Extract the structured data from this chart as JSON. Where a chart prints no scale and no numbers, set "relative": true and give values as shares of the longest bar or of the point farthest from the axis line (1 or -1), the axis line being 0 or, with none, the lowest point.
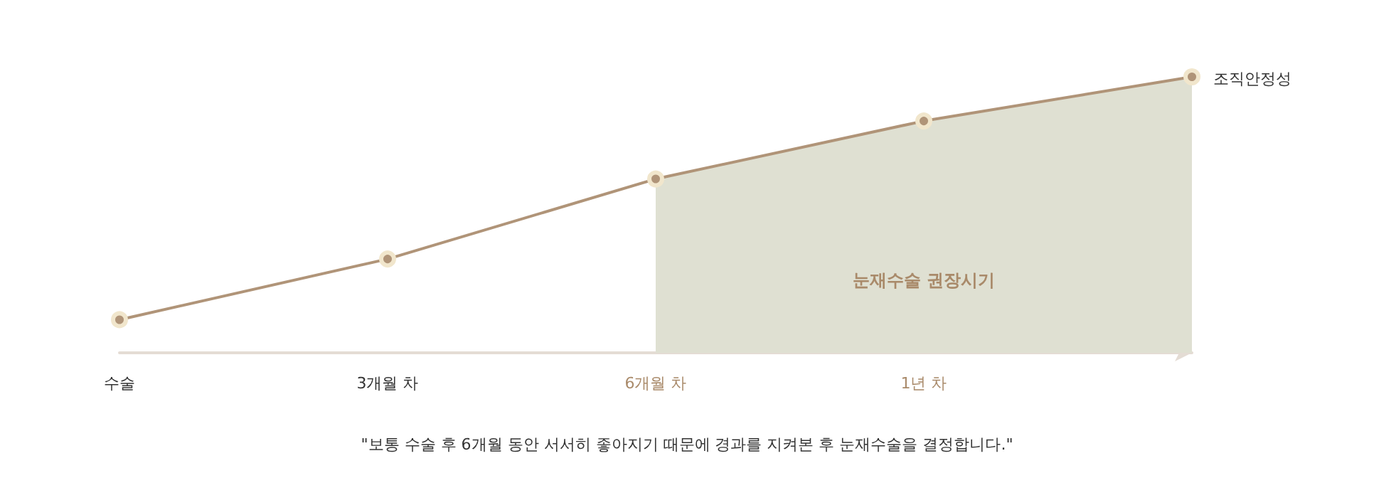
{
  "chart_data": {
    "type": "line",
    "relative": true,
    "ylabel": "조직안정성",
    "categories": [
      "수술",
      "3개월 차",
      "6개월 차",
      "1년 차",
      null
    ],
    "series": [
      {
        "color": "#b09478",
        "values": [
          0.12,
          0.34,
          0.63,
          0.84,
          1
        ]
      },
      {
        "type": "area",
        "marker": "none",
        "name": "눈재수술 권장시기",
        "color": "#dfe0d2",
        "values": [
          null,
          null,
          0.63,
          0.84,
          1
        ]
      }
    ],
    "marker": "circle",
    "annotations": [
      "\"보통 수술 후 6개월 동안 서서히 좋아지기 때문에 경과를 지켜본 후 눈재수술을 결정합니다.\""
    ]
  }
}
